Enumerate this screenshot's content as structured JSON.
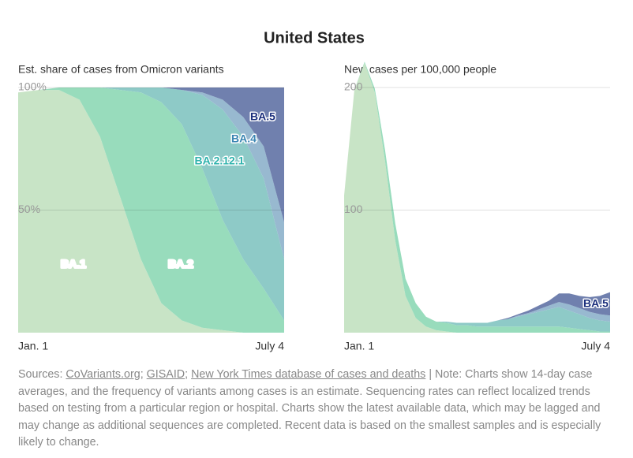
{
  "title": "United States",
  "chart_data": [
    {
      "type": "stacked-area",
      "title": "Est. share of cases from Omicron variants",
      "categories": [
        "Jan. 1",
        null,
        null,
        null,
        null,
        null,
        null,
        null,
        null,
        null,
        null,
        null,
        null,
        "July 4"
      ],
      "ylim": [
        0,
        100
      ],
      "yticks": [
        {
          "value": 50,
          "label": "50%"
        },
        {
          "value": 100,
          "label": "100%"
        }
      ],
      "grid": true,
      "series": [
        {
          "name": "BA.1",
          "color": "#c8e4c6",
          "values": [
            98,
            99,
            99,
            95,
            80,
            55,
            30,
            12,
            5,
            2,
            1,
            0,
            0,
            0
          ]
        },
        {
          "name": "BA.2",
          "color": "#98dcbc",
          "values": [
            0,
            0,
            1,
            5,
            20,
            44,
            68,
            82,
            80,
            65,
            45,
            30,
            18,
            5
          ]
        },
        {
          "name": "BA.2.12.1",
          "color": "#8ecac7",
          "values": [
            0,
            0,
            0,
            0,
            0,
            1,
            2,
            6,
            14,
            30,
            45,
            50,
            45,
            25
          ]
        },
        {
          "name": "BA.4",
          "color": "#98b9d0",
          "values": [
            0,
            0,
            0,
            0,
            0,
            0,
            0,
            0,
            0,
            1,
            4,
            8,
            13,
            15
          ]
        },
        {
          "name": "BA.5",
          "color": "#7080ae",
          "values": [
            0,
            0,
            0,
            0,
            0,
            0,
            0,
            0,
            1,
            2,
            5,
            12,
            24,
            55
          ]
        }
      ]
    },
    {
      "type": "stacked-area",
      "title": "New cases per 100,000 people",
      "categories": [
        "Jan. 1",
        null,
        null,
        null,
        null,
        null,
        null,
        null,
        null,
        null,
        null,
        null,
        null,
        null,
        null,
        null,
        null,
        null,
        null,
        null,
        null,
        null,
        null,
        null,
        null,
        null,
        "July 4"
      ],
      "ylim": [
        0,
        225
      ],
      "yticks": [
        100,
        200
      ],
      "grid": true,
      "series": [
        {
          "color": "#c8e4c6",
          "values": [
            112,
            198,
            220,
            196,
            140,
            75,
            30,
            12,
            5,
            2,
            1,
            0,
            0,
            0,
            0,
            0,
            0,
            0,
            0,
            0,
            0,
            0,
            0,
            0,
            0,
            0,
            0
          ]
        },
        {
          "color": "#98dcbc",
          "values": [
            0,
            0,
            1,
            3,
            9,
            14,
            14,
            12,
            8,
            7,
            7,
            6,
            6,
            5,
            5,
            5,
            5,
            5,
            5,
            5,
            5,
            5,
            4,
            3,
            2,
            1,
            1
          ]
        },
        {
          "color": "#8ecac7",
          "values": [
            0,
            0,
            0,
            0,
            0,
            0,
            0,
            0,
            0,
            0,
            1,
            2,
            2,
            3,
            3,
            5,
            6,
            8,
            10,
            12,
            14,
            16,
            14,
            12,
            10,
            9,
            8
          ]
        },
        {
          "color": "#98b9d0",
          "values": [
            0,
            0,
            0,
            0,
            0,
            0,
            0,
            0,
            0,
            0,
            0,
            0,
            0,
            0,
            0,
            0,
            0,
            1,
            1,
            2,
            3,
            4,
            5,
            5,
            5,
            5,
            5
          ]
        },
        {
          "name": "BA.5",
          "color": "#7080ae",
          "values": [
            0,
            0,
            0,
            0,
            0,
            0,
            0,
            0,
            0,
            0,
            0,
            0,
            0,
            0,
            0,
            0,
            1,
            1,
            2,
            3,
            4,
            7,
            9,
            10,
            12,
            15,
            19
          ]
        }
      ]
    }
  ],
  "footer": {
    "parts": [
      {
        "text": "Sources: "
      },
      {
        "text": "CoVariants.org",
        "link": true
      },
      {
        "text": "; "
      },
      {
        "text": "GISAID",
        "link": true
      },
      {
        "text": "; "
      },
      {
        "text": "New York Times database of cases and deaths",
        "link": true
      },
      {
        "text": " | Note: Charts show 14-day case averages, and the frequency of variants among cases is an estimate. Sequencing rates can reflect localized trends based on testing from a particular region or hospital. Charts show the latest available data, which may be lagged and may change as additional sequences are completed. Recent data is based on the smallest samples and is especially likely to change."
      }
    ]
  }
}
